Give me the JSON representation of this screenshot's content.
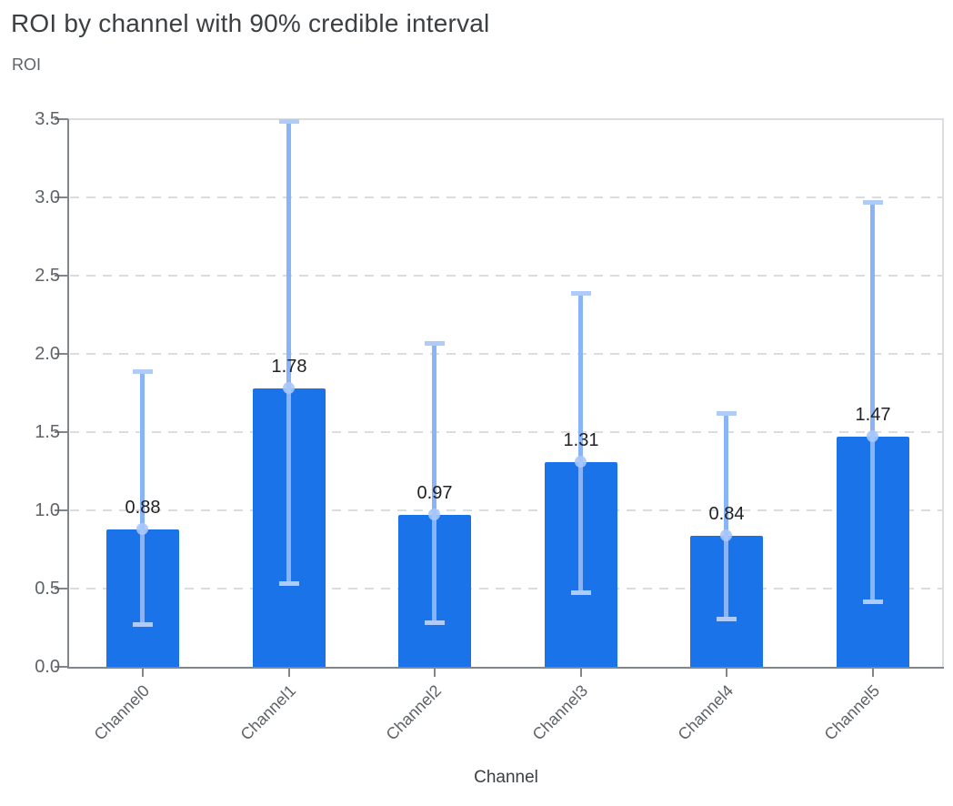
{
  "chart_data": {
    "type": "bar",
    "title": "ROI by channel with 90% credible interval",
    "ylabel": "ROI",
    "xlabel": "Channel",
    "categories": [
      "Channel0",
      "Channel1",
      "Channel2",
      "Channel3",
      "Channel4",
      "Channel5"
    ],
    "series": [
      {
        "name": "ROI",
        "values": [
          0.88,
          1.78,
          0.97,
          1.31,
          0.84,
          1.47
        ]
      }
    ],
    "value_labels": [
      "0.88",
      "1.78",
      "0.97",
      "1.31",
      "0.84",
      "1.47"
    ],
    "error_bars": {
      "label": "90% credible interval",
      "low": [
        0.27,
        0.53,
        0.28,
        0.47,
        0.3,
        0.41
      ],
      "high": [
        1.89,
        3.49,
        2.07,
        2.39,
        1.62,
        2.97
      ]
    },
    "y_ticks": [
      {
        "value": 0.0,
        "label": "0.0"
      },
      {
        "value": 0.5,
        "label": "0.5"
      },
      {
        "value": 1.0,
        "label": "1.0"
      },
      {
        "value": 1.5,
        "label": "1.5"
      },
      {
        "value": 2.0,
        "label": "2.0"
      },
      {
        "value": 2.5,
        "label": "2.5"
      },
      {
        "value": 3.0,
        "label": "3.0"
      },
      {
        "value": 3.5,
        "label": "3.5"
      }
    ],
    "ylim": [
      0,
      3.5
    ],
    "grid": "horizontal-dashed",
    "legend": "none",
    "bar_label_position": "above-bar"
  },
  "colors": {
    "background": "#ffffff",
    "bar": "#1a73e8",
    "interval_line": "#8ab4f8",
    "interval_cap": "#aecbfa",
    "point_marker": "#a8c7fa",
    "grid": "#dadce0",
    "axis": "#80868b",
    "title_text": "#3c4043",
    "subtitle_text": "#5f6368",
    "tick_text": "#5f6368",
    "value_text": "#202124",
    "x_axis_title_text": "#3c4043"
  }
}
